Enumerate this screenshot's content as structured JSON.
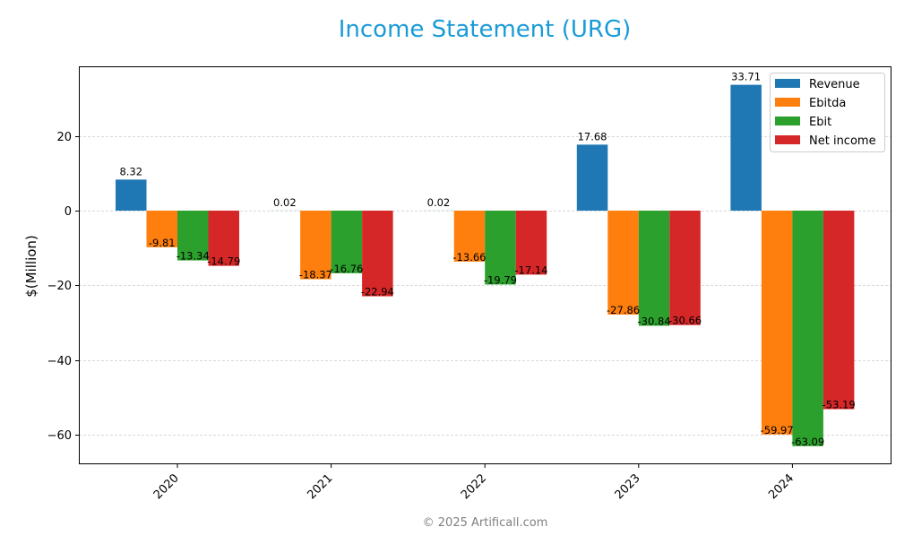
{
  "chart_data": {
    "type": "bar",
    "title": "Income Statement (URG)",
    "xlabel": "",
    "ylabel": "$(Million)",
    "categories": [
      "2020",
      "2021",
      "2022",
      "2023",
      "2024"
    ],
    "series": [
      {
        "name": "Revenue",
        "color": "#1f77b4",
        "values": [
          8.32,
          0.02,
          0.02,
          17.68,
          33.71
        ]
      },
      {
        "name": "Ebitda",
        "color": "#ff7f0e",
        "values": [
          -9.81,
          -18.37,
          -13.66,
          -27.86,
          -59.97
        ]
      },
      {
        "name": "Ebit",
        "color": "#2ca02c",
        "values": [
          -13.34,
          -16.76,
          -19.79,
          -30.84,
          -63.09
        ]
      },
      {
        "name": "Net income",
        "color": "#d62728",
        "values": [
          -14.79,
          -22.94,
          -17.14,
          -30.66,
          -53.19
        ]
      }
    ],
    "yticks": [
      20,
      0,
      -20,
      -40,
      -60
    ],
    "ylim": [
      -67.95,
      38.66
    ],
    "grid": true,
    "legend_position": "upper right"
  },
  "footer": "© 2025 Artificall.com"
}
